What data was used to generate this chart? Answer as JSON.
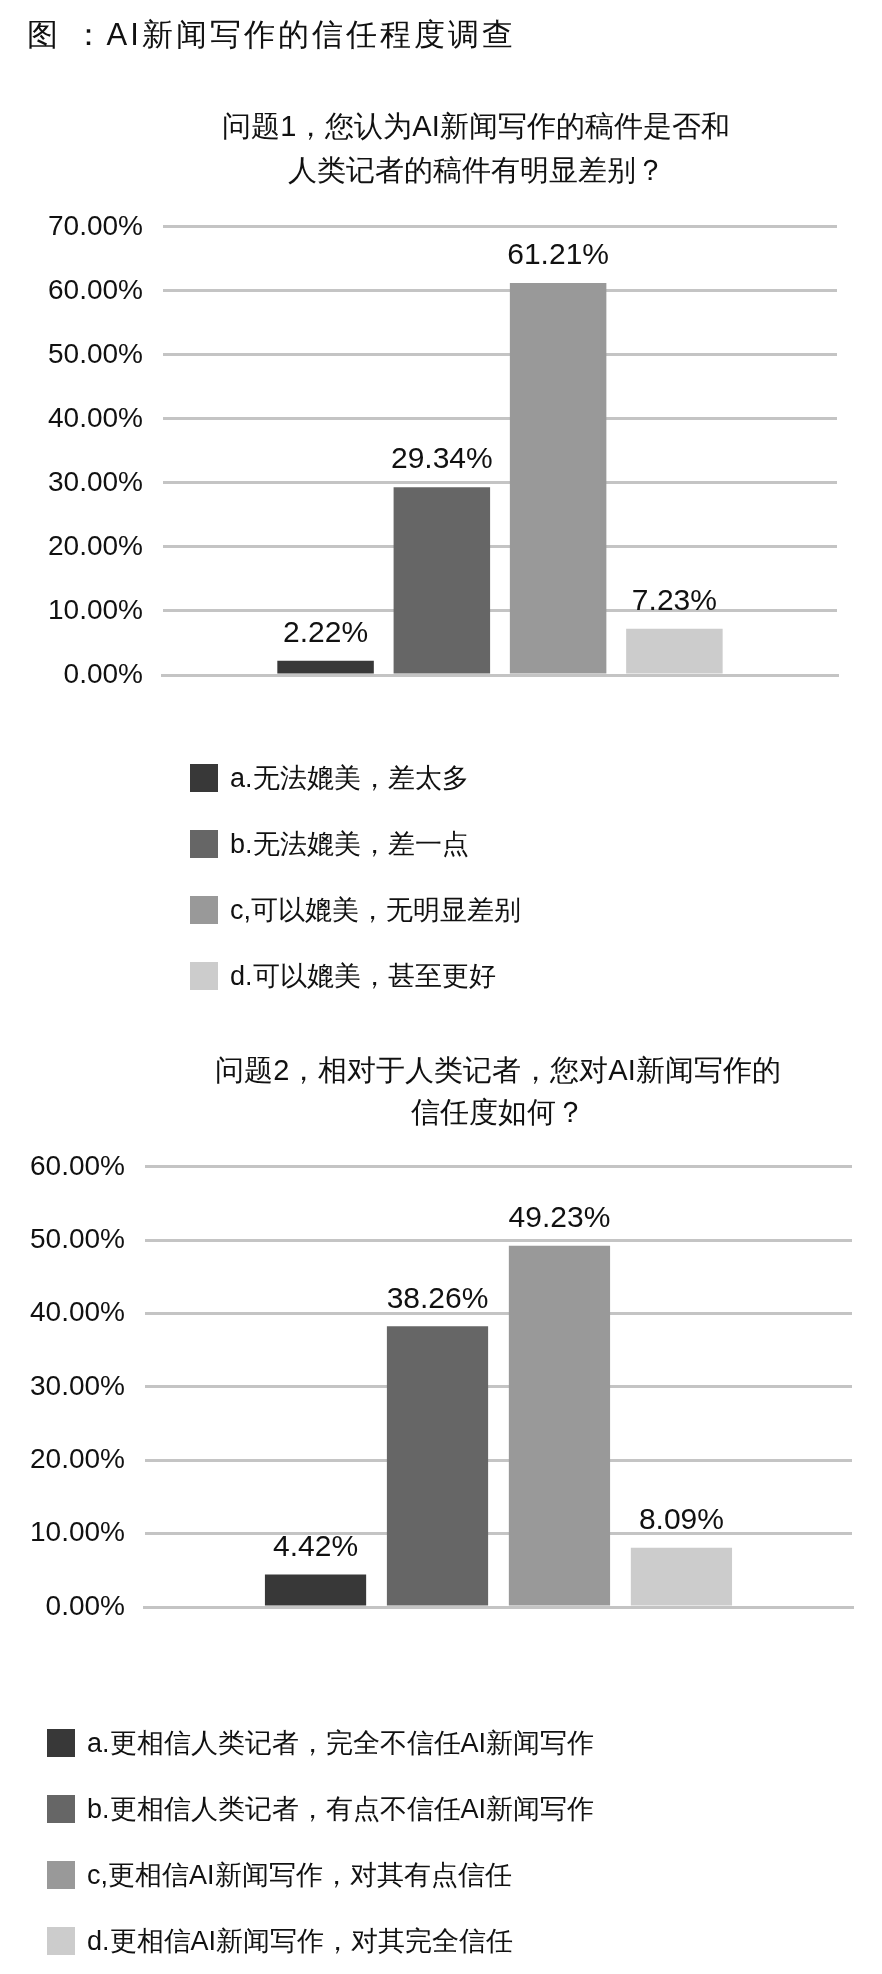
{
  "chart_data": [
    {
      "type": "bar",
      "title": "问题1，您认为AI新闻写作的稿件是否和人类记者的稿件有明显差别？",
      "annotations": [
        "图 ：AI新闻写作的信任程度调查"
      ],
      "categories": [
        null
      ],
      "series": [
        {
          "name": "a.无法媲美，差太多",
          "color": "#383838",
          "values": [
            2.22
          ],
          "value_labels": [
            "2.22%"
          ]
        },
        {
          "name": "b.无法媲美，差一点",
          "color": "#666666",
          "values": [
            29.34
          ],
          "value_labels": [
            "29.34%"
          ]
        },
        {
          "name": "c,可以媲美，无明显差别",
          "color": "#999999",
          "values": [
            61.21
          ],
          "value_labels": [
            "61.21%"
          ]
        },
        {
          "name": "d.可以媲美，甚至更好",
          "color": "#cccccc",
          "values": [
            7.23
          ],
          "value_labels": [
            "7.23%"
          ]
        }
      ],
      "ylim": [
        0,
        70
      ],
      "yticks": [
        {
          "value": 0,
          "label": "0.00%"
        },
        {
          "value": 10,
          "label": "10.00%"
        },
        {
          "value": 20,
          "label": "20.00%"
        },
        {
          "value": 30,
          "label": "30.00%"
        },
        {
          "value": 40,
          "label": "40.00%"
        },
        {
          "value": 50,
          "label": "50.00%"
        },
        {
          "value": 60,
          "label": "60.00%"
        },
        {
          "value": 70,
          "label": "70.00%"
        }
      ],
      "grid": "y",
      "legend": "bottom",
      "tick_labels": "y"
    },
    {
      "type": "bar",
      "title": "问题2，相对于人类记者，您对AI新闻写作的信任度如何？",
      "categories": [
        null
      ],
      "series": [
        {
          "name": "a.更相信人类记者，完全不信任AI新闻写作",
          "color": "#383838",
          "values": [
            4.42
          ],
          "value_labels": [
            "4.42%"
          ]
        },
        {
          "name": "b.更相信人类记者，有点不信任AI新闻写作",
          "color": "#666666",
          "values": [
            38.26
          ],
          "value_labels": [
            "38.26%"
          ]
        },
        {
          "name": "c,更相信AI新闻写作，对其有点信任",
          "color": "#999999",
          "values": [
            49.23
          ],
          "value_labels": [
            "49.23%"
          ]
        },
        {
          "name": "d.更相信AI新闻写作，对其完全信任",
          "color": "#cccccc",
          "values": [
            8.09
          ],
          "value_labels": [
            "8.09%"
          ]
        }
      ],
      "ylim": [
        0,
        60
      ],
      "yticks": [
        {
          "value": 0,
          "label": "0.00%"
        },
        {
          "value": 10,
          "label": "10.00%"
        },
        {
          "value": 20,
          "label": "20.00%"
        },
        {
          "value": 30,
          "label": "30.00%"
        },
        {
          "value": 40,
          "label": "40.00%"
        },
        {
          "value": 50,
          "label": "50.00%"
        },
        {
          "value": 60,
          "label": "60.00%"
        }
      ],
      "grid": "y",
      "legend": "bottom",
      "tick_labels": "y"
    }
  ]
}
